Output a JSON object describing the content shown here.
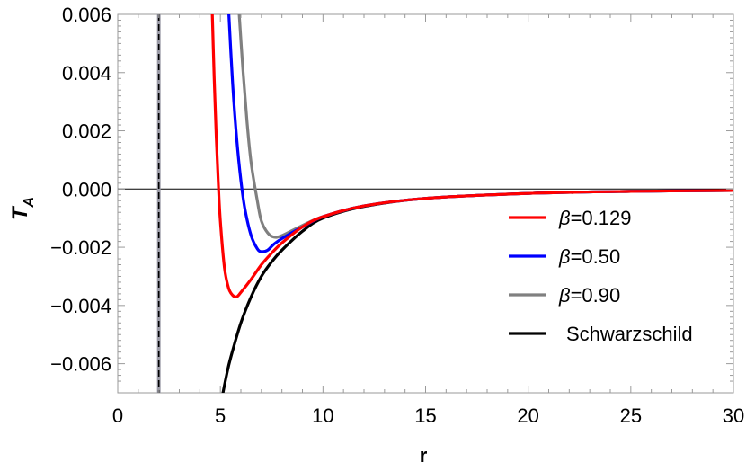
{
  "chart_data": {
    "type": "line",
    "xlabel": "r",
    "ylabel": "T",
    "ylabel_sub": "A",
    "xlim": [
      0,
      30
    ],
    "ylim": [
      -0.007,
      0.006
    ],
    "x_ticks": [
      0,
      5,
      10,
      15,
      20,
      25,
      30
    ],
    "x_tick_labels": [
      "0",
      "5",
      "10",
      "15",
      "20",
      "25",
      "30"
    ],
    "y_ticks": [
      0.006,
      0.004,
      0.002,
      0.0,
      -0.002,
      -0.004,
      -0.006
    ],
    "y_tick_labels": [
      "0.006",
      "0.004",
      "0.002",
      "0.000",
      "−0.002",
      "−0.004",
      "−0.006"
    ],
    "grid": false,
    "zero_line": true,
    "vertical_line": {
      "x": 2,
      "style": "black dashed over gray"
    },
    "legend_position": "bottom-right",
    "series": [
      {
        "name": "β=0.129",
        "color": "#ff0000",
        "x": [
          4.6,
          4.7,
          4.8,
          4.9,
          5.0,
          5.2,
          5.4,
          5.6,
          5.8,
          6.0,
          6.5,
          7.0,
          7.5,
          8.0,
          9.0,
          10.0,
          12.0,
          15.0,
          20.0,
          25.0,
          30.0
        ],
        "y": [
          0.0062,
          0.0038,
          0.0018,
          0.0002,
          -0.0011,
          -0.0027,
          -0.0034,
          -0.00365,
          -0.0037,
          -0.00355,
          -0.0031,
          -0.0026,
          -0.0022,
          -0.00185,
          -0.0013,
          -0.00095,
          -0.00058,
          -0.00032,
          -0.00015,
          -8e-05,
          -5e-05
        ]
      },
      {
        "name": "β=0.50",
        "color": "#0000ff",
        "x": [
          5.4,
          5.6,
          5.8,
          6.0,
          6.2,
          6.5,
          6.8,
          7.0,
          7.3,
          7.6,
          8.0,
          9.0,
          10.0,
          12.0,
          15.0,
          20.0,
          25.0,
          30.0
        ],
        "y": [
          0.0062,
          0.0036,
          0.0017,
          0.0003,
          -0.0007,
          -0.0016,
          -0.00205,
          -0.00215,
          -0.0021,
          -0.0019,
          -0.0017,
          -0.0013,
          -0.00095,
          -0.00058,
          -0.00032,
          -0.00015,
          -8e-05,
          -5e-05
        ]
      },
      {
        "name": "β=0.90",
        "color": "#808080",
        "x": [
          5.9,
          6.1,
          6.3,
          6.5,
          6.8,
          7.0,
          7.3,
          7.6,
          8.0,
          9.0,
          10.0,
          12.0,
          15.0,
          20.0,
          25.0,
          30.0
        ],
        "y": [
          0.0062,
          0.0041,
          0.0023,
          0.0009,
          -0.0004,
          -0.0011,
          -0.0015,
          -0.00165,
          -0.0016,
          -0.00125,
          -0.00095,
          -0.00058,
          -0.00032,
          -0.00015,
          -8e-05,
          -5e-05
        ]
      },
      {
        "name": "Schwarzschild",
        "color": "#000000",
        "x": [
          5.1,
          5.3,
          5.5,
          6.0,
          6.5,
          7.0,
          7.5,
          8.0,
          9.0,
          10.0,
          12.0,
          15.0,
          20.0,
          25.0,
          30.0
        ],
        "y": [
          -0.0071,
          -0.0064,
          -0.0058,
          -0.0046,
          -0.0037,
          -0.003,
          -0.0025,
          -0.0021,
          -0.00145,
          -0.001,
          -0.0006,
          -0.00032,
          -0.00015,
          -8e-05,
          -5e-05
        ]
      }
    ]
  }
}
